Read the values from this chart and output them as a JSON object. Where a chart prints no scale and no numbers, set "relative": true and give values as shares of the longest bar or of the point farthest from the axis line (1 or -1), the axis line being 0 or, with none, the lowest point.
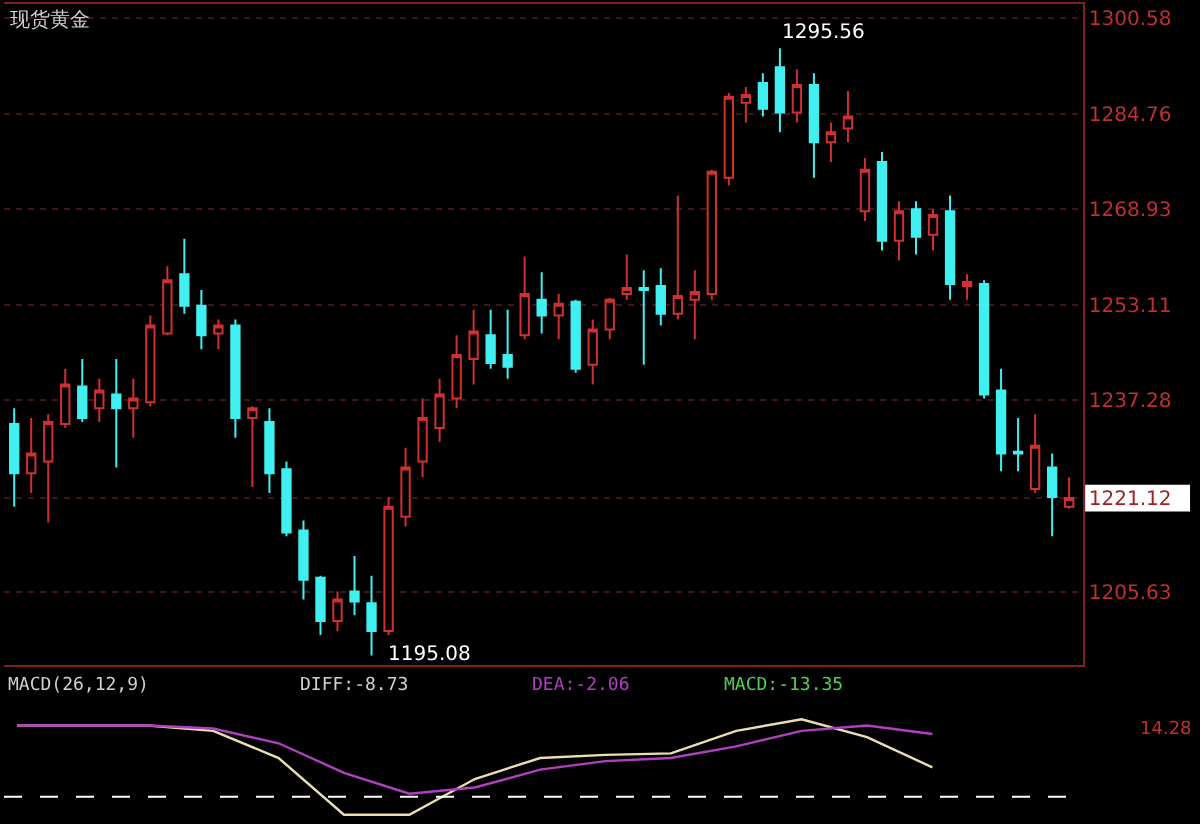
{
  "chart_data": [
    {
      "type": "candlestick",
      "title": "现货黄金",
      "categories": [
        null,
        null,
        null,
        null,
        null,
        null,
        null,
        null,
        null,
        null,
        null,
        null,
        null,
        null,
        null,
        null,
        null,
        null,
        null,
        null,
        null,
        null,
        null,
        null,
        null,
        null,
        null,
        null,
        null,
        null,
        null,
        null,
        null,
        null,
        null,
        null,
        null,
        null,
        null,
        null,
        null,
        null,
        null,
        null,
        null,
        null,
        null,
        null,
        null,
        null,
        null,
        null,
        null,
        null,
        null,
        null,
        null,
        null,
        null,
        null,
        null,
        null,
        null
      ],
      "ohlc": [
        [
          1233.38,
          1235.99,
          1219.68,
          1225.22
        ],
        [
          1225.22,
          1234.36,
          1221.96,
          1228.49
        ],
        [
          1227.18,
          1235.01,
          1217.07,
          1233.71
        ],
        [
          1233.38,
          1242.51,
          1232.73,
          1239.9
        ],
        [
          1239.58,
          1244.14,
          1233.71,
          1234.36
        ],
        [
          1235.99,
          1240.88,
          1233.71,
          1238.92
        ],
        [
          1238.27,
          1244.14,
          1226.2,
          1235.99
        ],
        [
          1235.99,
          1240.88,
          1231.1,
          1237.62
        ],
        [
          1236.97,
          1251.32,
          1236.32,
          1249.69
        ],
        [
          1248.38,
          1259.48,
          1248.06,
          1257.19
        ],
        [
          1258.17,
          1264.04,
          1251.65,
          1252.95
        ],
        [
          1252.95,
          1255.56,
          1245.77,
          1248.06
        ],
        [
          1248.38,
          1250.67,
          1245.77,
          1249.69
        ],
        [
          1249.69,
          1250.67,
          1231.1,
          1234.36
        ],
        [
          1234.36,
          1236.32,
          1222.94,
          1235.99
        ],
        [
          1233.71,
          1235.99,
          1221.96,
          1225.22
        ],
        [
          1225.88,
          1227.18,
          1214.79,
          1215.44
        ],
        [
          1215.76,
          1217.4,
          1204.35,
          1207.61
        ],
        [
          1207.94,
          1208.26,
          1198.48,
          1200.76
        ],
        [
          1200.76,
          1205.65,
          1199.13,
          1204.35
        ],
        [
          1205.65,
          1211.52,
          1201.74,
          1204.02
        ],
        [
          1203.7,
          1208.26,
          1195.08,
          1199.13
        ],
        [
          1199.13,
          1221.31,
          1198.48,
          1219.68
        ],
        [
          1218.05,
          1229.46,
          1216.42,
          1226.2
        ],
        [
          1227.18,
          1237.62,
          1224.57,
          1234.36
        ],
        [
          1232.73,
          1240.88,
          1230.44,
          1238.27
        ],
        [
          1237.62,
          1248.06,
          1235.99,
          1244.8
        ],
        [
          1244.14,
          1252.3,
          1239.9,
          1248.71
        ],
        [
          1248.06,
          1252.3,
          1242.51,
          1243.49
        ],
        [
          1244.8,
          1252.3,
          1240.88,
          1242.84
        ],
        [
          1248.06,
          1261.11,
          1247.41,
          1254.91
        ],
        [
          1253.93,
          1258.5,
          1248.38,
          1251.32
        ],
        [
          1251.32,
          1254.91,
          1247.41,
          1253.28
        ],
        [
          1253.6,
          1253.93,
          1241.86,
          1242.51
        ],
        [
          1243.17,
          1250.67,
          1239.9,
          1249.04
        ],
        [
          1249.04,
          1254.26,
          1247.41,
          1253.93
        ],
        [
          1254.91,
          1261.43,
          1253.93,
          1255.89
        ],
        [
          1255.89,
          1258.82,
          1243.17,
          1255.56
        ],
        [
          1256.21,
          1259.15,
          1249.69,
          1251.65
        ],
        [
          1251.65,
          1271.22,
          1250.67,
          1254.58
        ],
        [
          1253.93,
          1258.82,
          1247.41,
          1255.23
        ],
        [
          1254.91,
          1275.46,
          1253.93,
          1275.13
        ],
        [
          1274.15,
          1288.18,
          1272.85,
          1287.53
        ],
        [
          1286.55,
          1289.16,
          1283.29,
          1287.85
        ],
        [
          1289.81,
          1291.44,
          1284.27,
          1285.57
        ],
        [
          1292.42,
          1295.56,
          1281.66,
          1284.92
        ],
        [
          1284.92,
          1292.1,
          1283.29,
          1289.49
        ],
        [
          1289.49,
          1291.44,
          1274.15,
          1280.03
        ],
        [
          1280.03,
          1283.29,
          1276.76,
          1281.66
        ],
        [
          1282.31,
          1288.51,
          1280.03,
          1284.27
        ],
        [
          1268.61,
          1277.42,
          1266.98,
          1275.46
        ],
        [
          1276.76,
          1278.39,
          1262.08,
          1263.72
        ],
        [
          1263.72,
          1270.24,
          1260.45,
          1268.61
        ],
        [
          1268.94,
          1270.24,
          1261.43,
          1264.37
        ],
        [
          1264.69,
          1268.94,
          1262.08,
          1267.96
        ],
        [
          1268.61,
          1271.22,
          1253.93,
          1256.54
        ],
        [
          1256.21,
          1258.17,
          1253.93,
          1256.87
        ],
        [
          1256.54,
          1257.19,
          1237.62,
          1238.27
        ],
        [
          1238.92,
          1242.51,
          1225.55,
          1228.49
        ],
        [
          1228.8,
          1234.36,
          1225.55,
          1228.49
        ],
        [
          1222.61,
          1235.01,
          1221.96,
          1229.79
        ],
        [
          1226.2,
          1228.49,
          1214.79,
          1221.31
        ],
        [
          1219.68,
          1224.57,
          1219.35,
          1221.12
        ]
      ],
      "colors": [
        "#40f0f0",
        "#d03030",
        "#d03030",
        "#d03030",
        "#40f0f0",
        "#d03030",
        "#40f0f0",
        "#d03030",
        "#d03030",
        "#d03030",
        "#40f0f0",
        "#40f0f0",
        "#d03030",
        "#40f0f0",
        "#d03030",
        "#40f0f0",
        "#40f0f0",
        "#40f0f0",
        "#40f0f0",
        "#d03030",
        "#40f0f0",
        "#40f0f0",
        "#d03030",
        "#d03030",
        "#d03030",
        "#d03030",
        "#d03030",
        "#d03030",
        "#40f0f0",
        "#40f0f0",
        "#d03030",
        "#40f0f0",
        "#d03030",
        "#40f0f0",
        "#d03030",
        "#d03030",
        "#d03030",
        "#40f0f0",
        "#40f0f0",
        "#d03030",
        "#d03030",
        "#d03030",
        "#d03030",
        "#d03030",
        "#40f0f0",
        "#40f0f0",
        "#d03030",
        "#40f0f0",
        "#d03030",
        "#d03030",
        "#d03030",
        "#40f0f0",
        "#d03030",
        "#40f0f0",
        "#d03030",
        "#40f0f0",
        "#d03030",
        "#40f0f0",
        "#40f0f0",
        "#40f0f0",
        "#d03030",
        "#40f0f0",
        "#d03030"
      ],
      "ylim": [
        1193.5,
        1302.9
      ],
      "yticks": [
        1205.63,
        1221.12,
        1237.28,
        1253.11,
        1268.93,
        1284.76,
        1300.58
      ],
      "grid": "y",
      "annotations": [
        "1295.56",
        "1195.08"
      ]
    },
    {
      "type": "line",
      "relative": true,
      "categories": [
        null,
        null,
        null,
        null,
        null,
        null,
        null,
        null,
        null,
        null,
        null,
        null,
        null,
        null,
        null
      ],
      "series": [
        {
          "color": "#e8e0b0",
          "values": [
            0.92,
            0.92,
            0.92,
            0.85,
            0.5,
            -0.23,
            -0.23,
            0.23,
            0.5,
            0.54,
            0.56,
            0.85,
            1,
            0.77,
            0.38
          ]
        },
        {
          "color": "#b040c0",
          "values": [
            0.92,
            0.92,
            0.92,
            0.88,
            0.69,
            0.31,
            0.04,
            0.12,
            0.35,
            0.46,
            0.5,
            0.65,
            0.85,
            0.92,
            0.81
          ]
        }
      ],
      "ref_lines": [
        {
          "axis": "y",
          "value": 0,
          "color": "#ffffff",
          "line_style": "dashed"
        }
      ],
      "annotations": [
        "MACD(26,12,9)",
        "DIFF:-8.73",
        "DEA:-2.06",
        "MACD:-13.35",
        "14.28"
      ]
    }
  ]
}
